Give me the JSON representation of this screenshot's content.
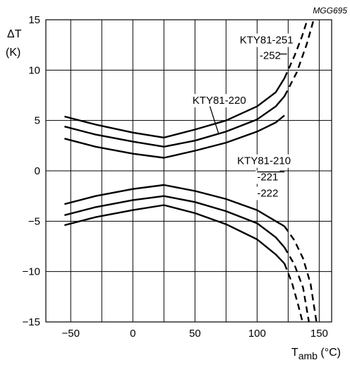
{
  "chart_data": {
    "type": "line",
    "title": "",
    "figure_ref": "MGG695",
    "ylabel_top": "ΔT",
    "ylabel_unit": "(K)",
    "xlabel_main": "T",
    "xlabel_sub": "amb",
    "xlabel_unit": " (°C)",
    "xlim": [
      -70,
      160
    ],
    "ylim": [
      -15,
      15
    ],
    "grid": true,
    "x_ticks": [
      -50,
      0,
      50,
      100,
      150
    ],
    "x_tick_labels": [
      "−50",
      "0",
      "50",
      "100",
      "150"
    ],
    "y_ticks": [
      -15,
      -10,
      -5,
      0,
      5,
      10,
      15
    ],
    "y_tick_labels": [
      "−15",
      "−10",
      "−5",
      "0",
      "5",
      "10",
      "15"
    ],
    "series": [
      {
        "id": "upper-251",
        "solid": [
          [
            -55,
            5.4
          ],
          [
            -30,
            4.6
          ],
          [
            0,
            3.8
          ],
          [
            25,
            3.3
          ],
          [
            50,
            4.1
          ],
          [
            75,
            5.0
          ],
          [
            100,
            6.4
          ],
          [
            115,
            7.8
          ],
          [
            122,
            9.2
          ]
        ],
        "dashed": [
          [
            122,
            9.2
          ],
          [
            130,
            11.4
          ],
          [
            136,
            13.3
          ],
          [
            141,
            15.2
          ]
        ]
      },
      {
        "id": "upper-220",
        "solid": [
          [
            -55,
            4.4
          ],
          [
            -30,
            3.6
          ],
          [
            0,
            2.9
          ],
          [
            25,
            2.4
          ],
          [
            50,
            3.0
          ],
          [
            75,
            3.9
          ],
          [
            100,
            5.1
          ],
          [
            115,
            6.4
          ],
          [
            122,
            7.4
          ]
        ],
        "dashed": [
          [
            122,
            7.4
          ],
          [
            132,
            9.8
          ],
          [
            140,
            12.6
          ],
          [
            146,
            15.2
          ]
        ]
      },
      {
        "id": "upper-210",
        "solid": [
          [
            -55,
            3.2
          ],
          [
            -30,
            2.4
          ],
          [
            0,
            1.7
          ],
          [
            25,
            1.3
          ],
          [
            50,
            2.0
          ],
          [
            75,
            2.8
          ],
          [
            100,
            3.9
          ],
          [
            115,
            4.8
          ],
          [
            122,
            5.5
          ]
        ],
        "dashed": []
      },
      {
        "id": "lower-210",
        "solid": [
          [
            -55,
            -3.3
          ],
          [
            -30,
            -2.5
          ],
          [
            0,
            -1.8
          ],
          [
            25,
            -1.4
          ],
          [
            50,
            -2.0
          ],
          [
            75,
            -2.8
          ],
          [
            100,
            -3.9
          ],
          [
            115,
            -5.0
          ],
          [
            122,
            -5.5
          ]
        ],
        "dashed": [
          [
            122,
            -5.5
          ],
          [
            130,
            -6.9
          ],
          [
            137,
            -8.7
          ],
          [
            143,
            -11.2
          ],
          [
            148,
            -15.2
          ]
        ]
      },
      {
        "id": "lower-220",
        "solid": [
          [
            -55,
            -4.4
          ],
          [
            -30,
            -3.6
          ],
          [
            0,
            -2.9
          ],
          [
            25,
            -2.5
          ],
          [
            50,
            -3.1
          ],
          [
            75,
            -4.0
          ],
          [
            100,
            -5.2
          ],
          [
            115,
            -6.6
          ],
          [
            122,
            -7.6
          ]
        ],
        "dashed": [
          [
            122,
            -7.6
          ],
          [
            130,
            -9.3
          ],
          [
            137,
            -11.6
          ],
          [
            142,
            -15.2
          ]
        ]
      },
      {
        "id": "lower-251",
        "solid": [
          [
            -55,
            -5.4
          ],
          [
            -30,
            -4.6
          ],
          [
            0,
            -3.9
          ],
          [
            25,
            -3.4
          ],
          [
            50,
            -4.2
          ],
          [
            75,
            -5.3
          ],
          [
            100,
            -6.8
          ],
          [
            115,
            -8.3
          ],
          [
            122,
            -9.2
          ]
        ],
        "dashed": [
          [
            122,
            -9.2
          ],
          [
            128,
            -11.1
          ],
          [
            133,
            -13.3
          ],
          [
            137,
            -15.2
          ]
        ]
      }
    ],
    "annotations": [
      {
        "id": "kty81-251",
        "lines": [
          "KTY81-251",
          "-252"
        ],
        "text_at": [
          86,
          13.0
        ],
        "line_gap": 1.55,
        "leader": [
          [
            118,
            11.6
          ],
          [
            124,
            11.6
          ]
        ]
      },
      {
        "id": "kty81-220",
        "lines": [
          "KTY81-220"
        ],
        "text_at": [
          48,
          7.0
        ],
        "line_gap": 0,
        "leader": [
          [
            62,
            6.4
          ],
          [
            69,
            3.7
          ]
        ]
      },
      {
        "id": "kty81-210",
        "lines": [
          "KTY81-210",
          "-221",
          "-222"
        ],
        "text_at": [
          84,
          1.0
        ],
        "line_gap": 1.6,
        "leader": [
          [
            100,
            -0.1
          ],
          [
            122,
            -0.1
          ]
        ]
      }
    ]
  }
}
